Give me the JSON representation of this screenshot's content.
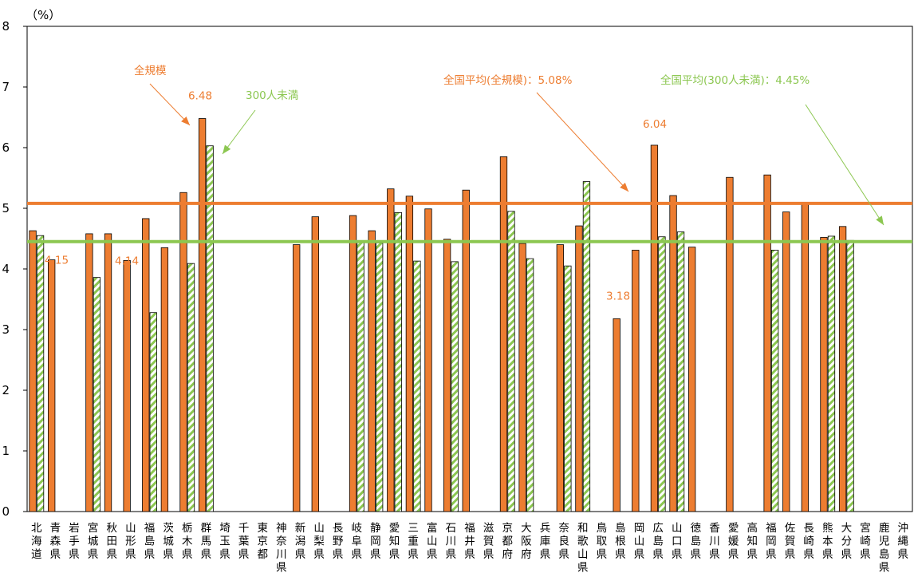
{
  "chart_data": {
    "type": "bar",
    "ylabel": "（%）",
    "ylim": [
      0,
      8
    ],
    "yticks": [
      0,
      1,
      2,
      3,
      4,
      5,
      6,
      7,
      8
    ],
    "grid": false,
    "colors": {
      "all_size": "#ED7D31",
      "under300": "#8CC751",
      "avg_all": "#ED7D31",
      "avg_300": "#8CC751"
    },
    "categories": [
      "北海道",
      "青森県",
      "岩手県",
      "宮城県",
      "秋田県",
      "山形県",
      "福島県",
      "茨城県",
      "栃木県",
      "群馬県",
      "埼玉県",
      "千葉県",
      "東京都",
      "神奈川県",
      "新潟県",
      "山梨県",
      "長野県",
      "岐阜県",
      "静岡県",
      "愛知県",
      "三重県",
      "富山県",
      "石川県",
      "福井県",
      "滋賀県",
      "京都府",
      "大阪府",
      "兵庫県",
      "奈良県",
      "和歌山県",
      "鳥取県",
      "島根県",
      "岡山県",
      "広島県",
      "山口県",
      "徳島県",
      "香川県",
      "愛媛県",
      "高知県",
      "福岡県",
      "佐賀県",
      "長崎県",
      "熊本県",
      "大分県",
      "宮崎県",
      "鹿児島県",
      "沖縄県"
    ],
    "series": [
      {
        "key": "all_size",
        "values": [
          4.63,
          4.15,
          null,
          4.58,
          4.58,
          4.14,
          4.83,
          4.35,
          5.26,
          6.48,
          null,
          null,
          null,
          null,
          4.4,
          4.86,
          null,
          4.88,
          4.63,
          5.32,
          5.2,
          4.99,
          4.49,
          5.3,
          null,
          5.85,
          4.42,
          null,
          4.4,
          4.71,
          null,
          3.18,
          4.31,
          6.04,
          5.21,
          4.36,
          null,
          5.51,
          null,
          5.55,
          4.94,
          5.07,
          4.52,
          4.7,
          null,
          null,
          null
        ]
      },
      {
        "key": "under300",
        "values": [
          4.55,
          null,
          null,
          3.86,
          null,
          null,
          3.28,
          null,
          4.09,
          6.03,
          null,
          null,
          null,
          null,
          null,
          null,
          null,
          4.46,
          4.43,
          4.93,
          4.13,
          null,
          4.12,
          null,
          null,
          4.95,
          4.17,
          null,
          4.05,
          5.44,
          null,
          null,
          null,
          4.53,
          4.61,
          null,
          null,
          null,
          null,
          4.31,
          null,
          null,
          4.54,
          4.47,
          null,
          null,
          null
        ]
      }
    ],
    "reference_lines": [
      {
        "key": "avg_all",
        "value": 5.08,
        "label": "全国平均(全規模)：5.08%"
      },
      {
        "key": "avg_300",
        "value": 4.45,
        "label": "全国平均(300人未満)：4.45%"
      }
    ],
    "annotations": [
      {
        "text": "全規模",
        "color": "all_size"
      },
      {
        "text": "300人未満",
        "color": "under300"
      },
      {
        "text": "6.48",
        "category_index": 9,
        "value": 6.48
      },
      {
        "text": "4.15",
        "category_index": 1,
        "value": 4.15
      },
      {
        "text": "4.14",
        "category_index": 5,
        "value": 4.14
      },
      {
        "text": "3.18",
        "category_index": 31,
        "value": 3.18
      },
      {
        "text": "6.04",
        "category_index": 33,
        "value": 6.04
      }
    ]
  }
}
